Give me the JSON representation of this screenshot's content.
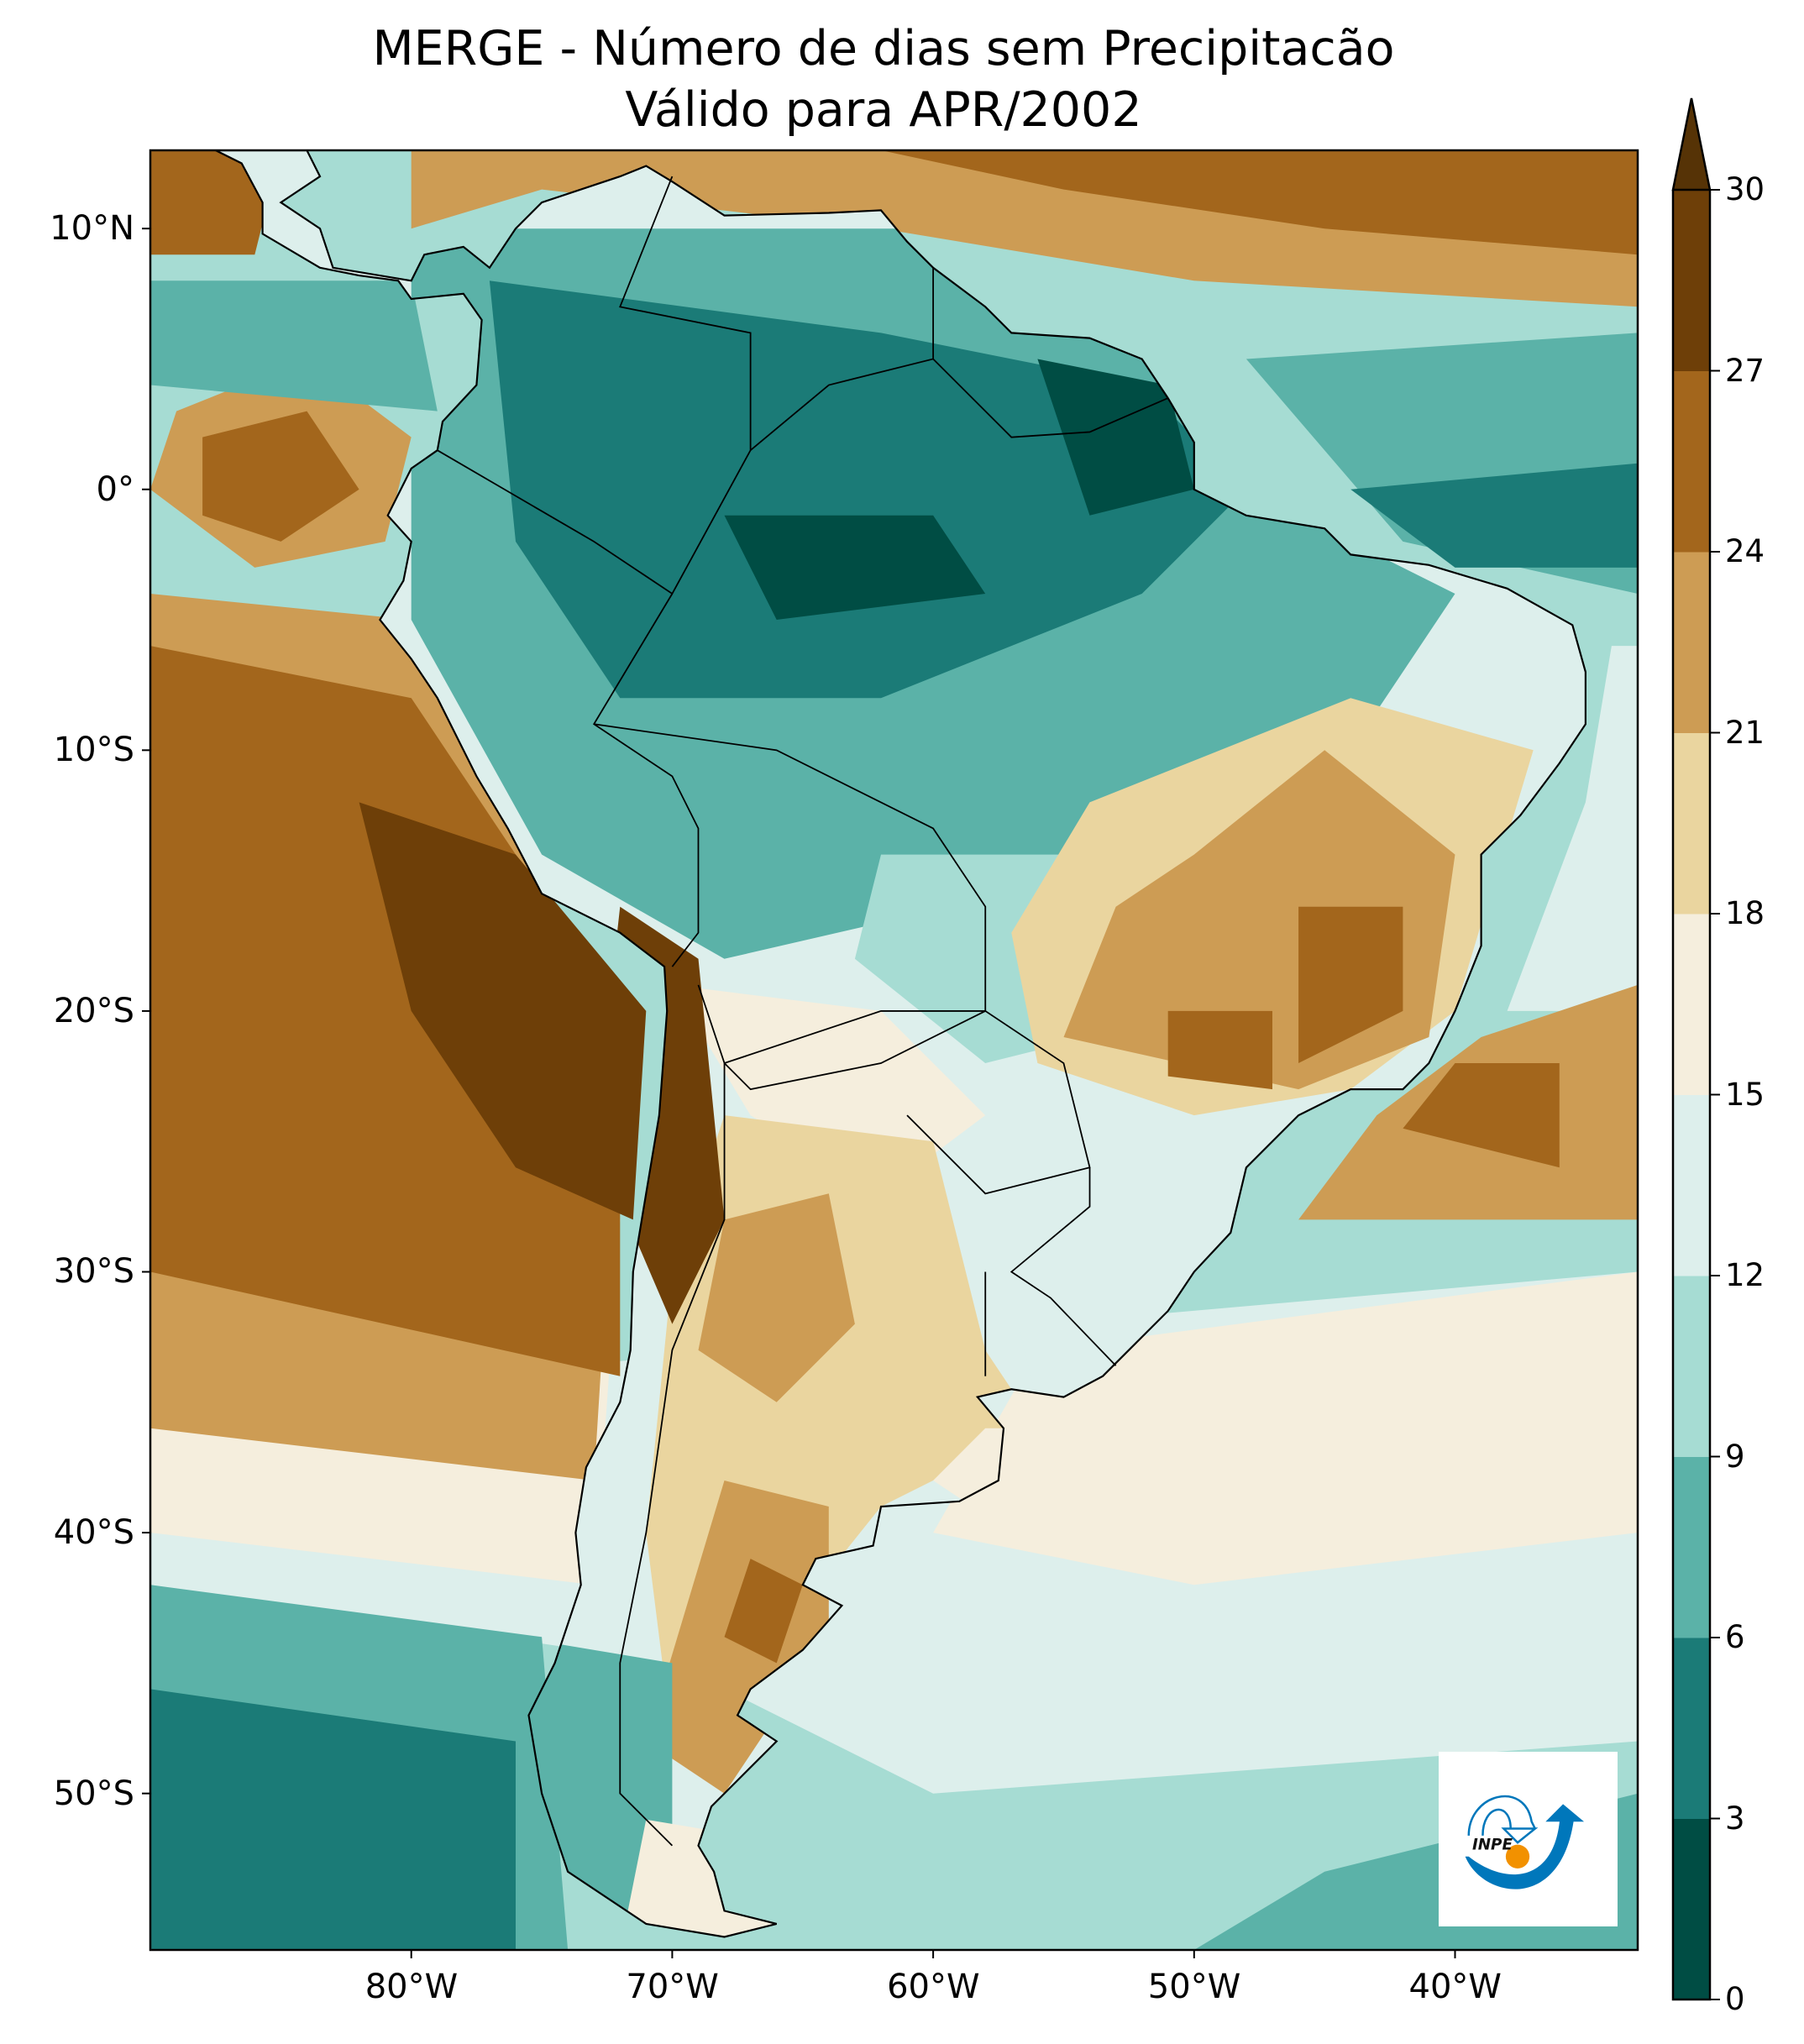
{
  "title": {
    "line1": "MERGE - Número de dias sem Precipitacão",
    "line2": "Válido para APR/2002"
  },
  "map": {
    "extent": {
      "lon": [
        -90,
        -33
      ],
      "lat": [
        -56,
        13
      ]
    },
    "lon_ticks": [
      {
        "value": -80,
        "label": "80°W"
      },
      {
        "value": -70,
        "label": "70°W"
      },
      {
        "value": -60,
        "label": "60°W"
      },
      {
        "value": -50,
        "label": "50°W"
      },
      {
        "value": -40,
        "label": "40°W"
      }
    ],
    "lat_ticks": [
      {
        "value": 10,
        "label": "10°N"
      },
      {
        "value": 0,
        "label": "0°"
      },
      {
        "value": -10,
        "label": "10°S"
      },
      {
        "value": -20,
        "label": "20°S"
      },
      {
        "value": -30,
        "label": "30°S"
      },
      {
        "value": -40,
        "label": "40°S"
      },
      {
        "value": -50,
        "label": "50°S"
      }
    ],
    "logo_text": "INPE"
  },
  "colorbar": {
    "levels": [
      0,
      3,
      6,
      9,
      12,
      15,
      18,
      21,
      24,
      27,
      30
    ],
    "labels": [
      "0",
      "3",
      "6",
      "9",
      "12",
      "15",
      "18",
      "21",
      "24",
      "27",
      "30"
    ],
    "colors": [
      "#004d44",
      "#1b7b77",
      "#5bb2a8",
      "#a6dcd3",
      "#ddefec",
      "#f5eedd",
      "#ead59f",
      "#cd9c54",
      "#a3661c",
      "#6e3f08"
    ],
    "extend_max_color": "#563306",
    "extend": "max"
  }
}
